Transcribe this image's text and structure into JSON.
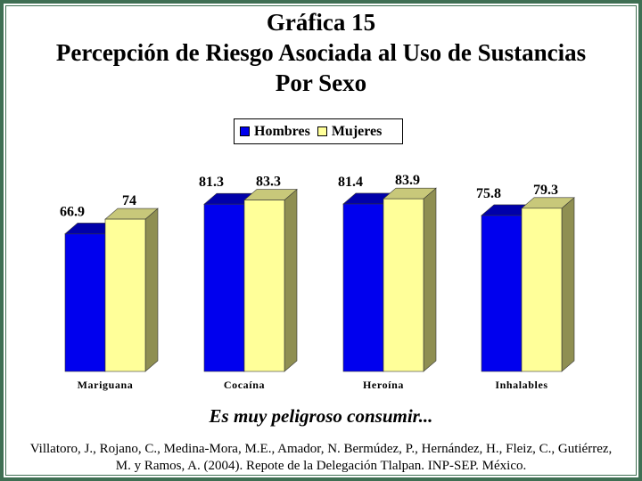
{
  "chart_data": {
    "type": "bar",
    "title": [
      "Gráfica 15",
      "Percepción de Riesgo Asociada al Uso de Sustancias",
      "Por Sexo"
    ],
    "categories": [
      "Mariguana",
      "Cocaína",
      "Heroína",
      "Inhalables"
    ],
    "series": [
      {
        "name": "Hombres",
        "values": [
          66.9,
          81.3,
          81.4,
          75.8
        ],
        "color": "#0000ee"
      },
      {
        "name": "Mujeres",
        "values": [
          74,
          83.3,
          83.9,
          79.3
        ],
        "color": "#ffff99"
      }
    ],
    "value_labels": [
      [
        "66.9",
        "81.3",
        "81.4",
        "75.8"
      ],
      [
        "74",
        "83.3",
        "83.9",
        "79.3"
      ]
    ],
    "ylim": [
      0,
      100
    ],
    "grid": false,
    "legend": "top-center",
    "style": "3d"
  },
  "caption": "Es muy peligroso consumir...",
  "source": "Villatoro, J., Rojano, C., Medina-Mora, M.E., Amador, N. Bermúdez, P., Hernández, H., Fleiz, C., Gutiérrez, M. y Ramos, A. (2004). Repote de la Delegación Tlalpan. INP-SEP. México."
}
